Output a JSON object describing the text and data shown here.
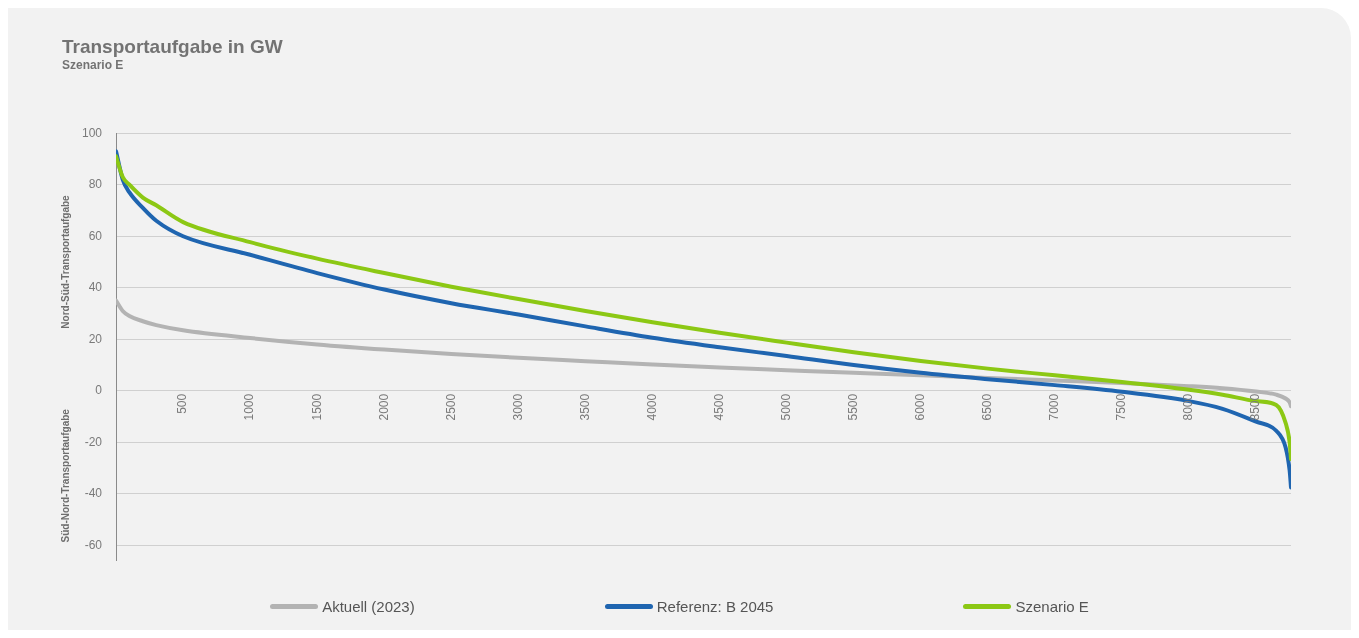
{
  "chart_data": {
    "type": "line",
    "title": "Transportaufgabe in GW",
    "subtitle": "Szenario E",
    "ylabel": "Nord-Süd-Transportaufgabe",
    "annotations": [
      "Süd-Nord-Transportaufgabe"
    ],
    "x": [
      0,
      50,
      100,
      200,
      300,
      500,
      1000,
      1500,
      2000,
      2500,
      3000,
      3500,
      4000,
      4500,
      5000,
      5500,
      6000,
      6500,
      7000,
      7500,
      8000,
      8250,
      8500,
      8650,
      8720,
      8750,
      8760
    ],
    "series": [
      {
        "name": "Aktuell (2023)",
        "color": "#b3b3b3",
        "values": [
          35,
          31,
          29,
          27,
          25.5,
          23.5,
          20.5,
          18,
          16,
          14.3,
          12.8,
          11.5,
          10.2,
          9,
          8,
          7,
          6,
          5,
          4,
          3,
          1.8,
          1,
          -0.3,
          -1.5,
          -3,
          -4.5,
          -6
        ]
      },
      {
        "name": "Referenz: B 2045",
        "color": "#1f65b0",
        "values": [
          93,
          82,
          77,
          71,
          66,
          60,
          52.8,
          45.7,
          39.3,
          34,
          29.6,
          25,
          20.6,
          16.9,
          13.5,
          10,
          7,
          4.5,
          2.2,
          -0.4,
          -4,
          -7,
          -12,
          -15.5,
          -22,
          -31,
          -37.5
        ]
      },
      {
        "name": "Szenario E",
        "color": "#8cc814",
        "values": [
          91,
          83,
          80,
          75,
          72,
          65.5,
          57.7,
          51.3,
          45.7,
          40.4,
          35.6,
          31,
          26.6,
          22.5,
          18.7,
          15,
          11.6,
          8.6,
          6,
          3.4,
          0.4,
          -1.5,
          -4,
          -5.5,
          -12.5,
          -20,
          -26.5
        ]
      }
    ],
    "xlim": [
      0,
      8760
    ],
    "xticks": [
      500,
      1000,
      1500,
      2000,
      2500,
      3000,
      3500,
      4000,
      4500,
      5000,
      5500,
      6000,
      6500,
      7000,
      7500,
      8000,
      8500
    ],
    "ylim": [
      -66,
      100
    ],
    "yticks": [
      -60,
      -40,
      -20,
      0,
      20,
      40,
      60,
      80,
      100
    ],
    "grid": "y",
    "legend": "bottom",
    "marker": "none",
    "line_style": "solid"
  }
}
